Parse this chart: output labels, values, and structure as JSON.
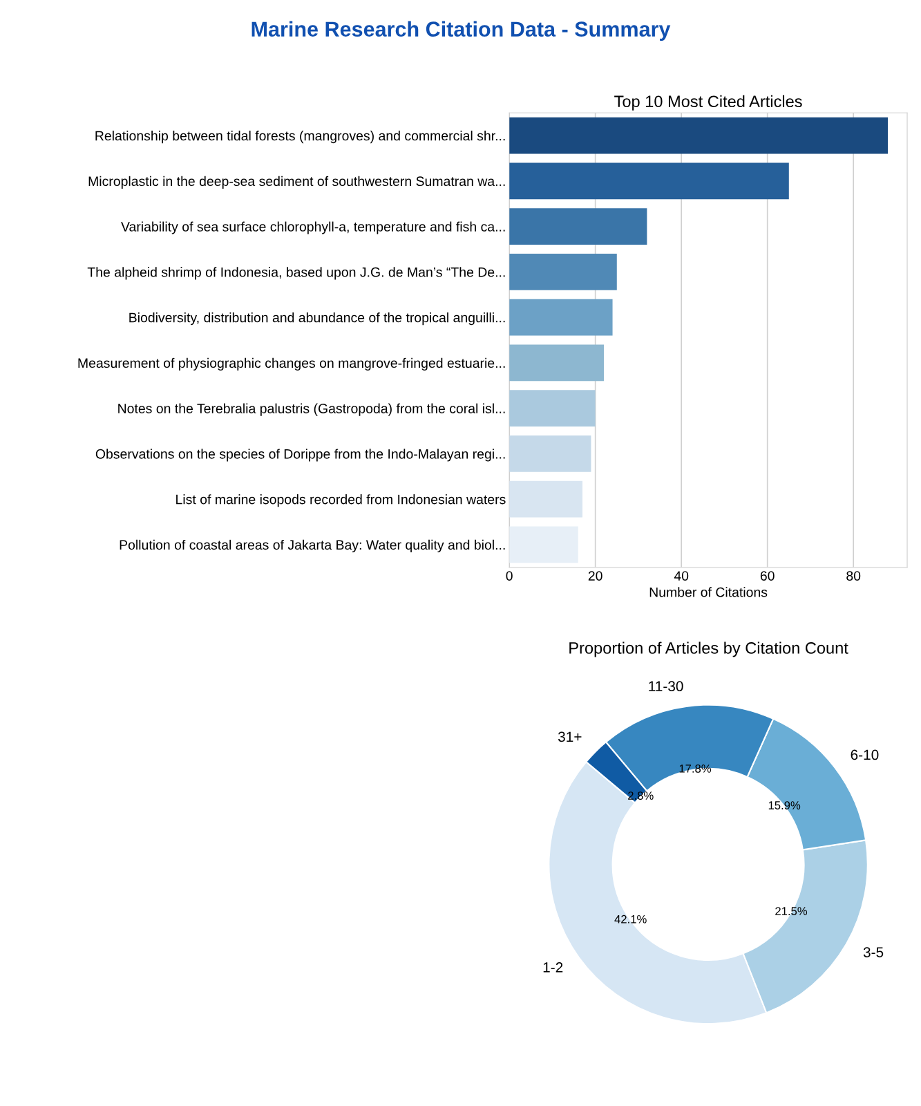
{
  "chart_data": [
    {
      "type": "bar",
      "orientation": "horizontal",
      "title": "Top 10 Most Cited Articles",
      "xlabel": "Number of Citations",
      "categories": [
        "Relationship between tidal forests (mangroves) and commercial shr...",
        "Microplastic in the deep-sea sediment of southwestern Sumatran wa...",
        "Variability of sea surface chlorophyll-a, temperature and fish ca...",
        "The alpheid shrimp of Indonesia, based upon J.G. de Man’s “The De...",
        "Biodiversity, distribution and abundance of the tropical anguilli...",
        "Measurement of physiographic changes on mangrove-fringed estuarie...",
        "Notes on the Terebralia palustris (Gastropoda) from the coral isl...",
        "Observations on the species of Dorippe from the Indo-Malayan regi...",
        "List of marine isopods recorded from Indonesian waters",
        "Pollution of coastal areas of Jakarta Bay: Water quality and biol..."
      ],
      "values": [
        88,
        65,
        32,
        25,
        24,
        22,
        20,
        19,
        17,
        16
      ],
      "colors": [
        "#1a4a7f",
        "#26609a",
        "#3a75a8",
        "#5089b6",
        "#6ca1c6",
        "#8db7d0",
        "#aac9de",
        "#c5d9e9",
        "#d8e5f1",
        "#e7eff7"
      ],
      "xlim": [
        0,
        92.5
      ],
      "xticks": [
        0,
        20,
        40,
        60,
        80
      ],
      "grid": "x"
    },
    {
      "type": "donut",
      "title": "Proportion of Articles by Citation Count",
      "categories": [
        "1-2",
        "3-5",
        "6-10",
        "11-30",
        "31+"
      ],
      "values": [
        42.1,
        21.5,
        15.9,
        17.8,
        2.8
      ],
      "value_labels": [
        "42.1%",
        "21.5%",
        "15.9%",
        "17.8%",
        "2.8%"
      ],
      "colors": [
        "#d6e6f4",
        "#abd0e6",
        "#6aaed6",
        "#3787c0",
        "#105ba4"
      ]
    },
    {
      "type": "other",
      "title": "Marine Research Citation Data - Summary"
    }
  ]
}
